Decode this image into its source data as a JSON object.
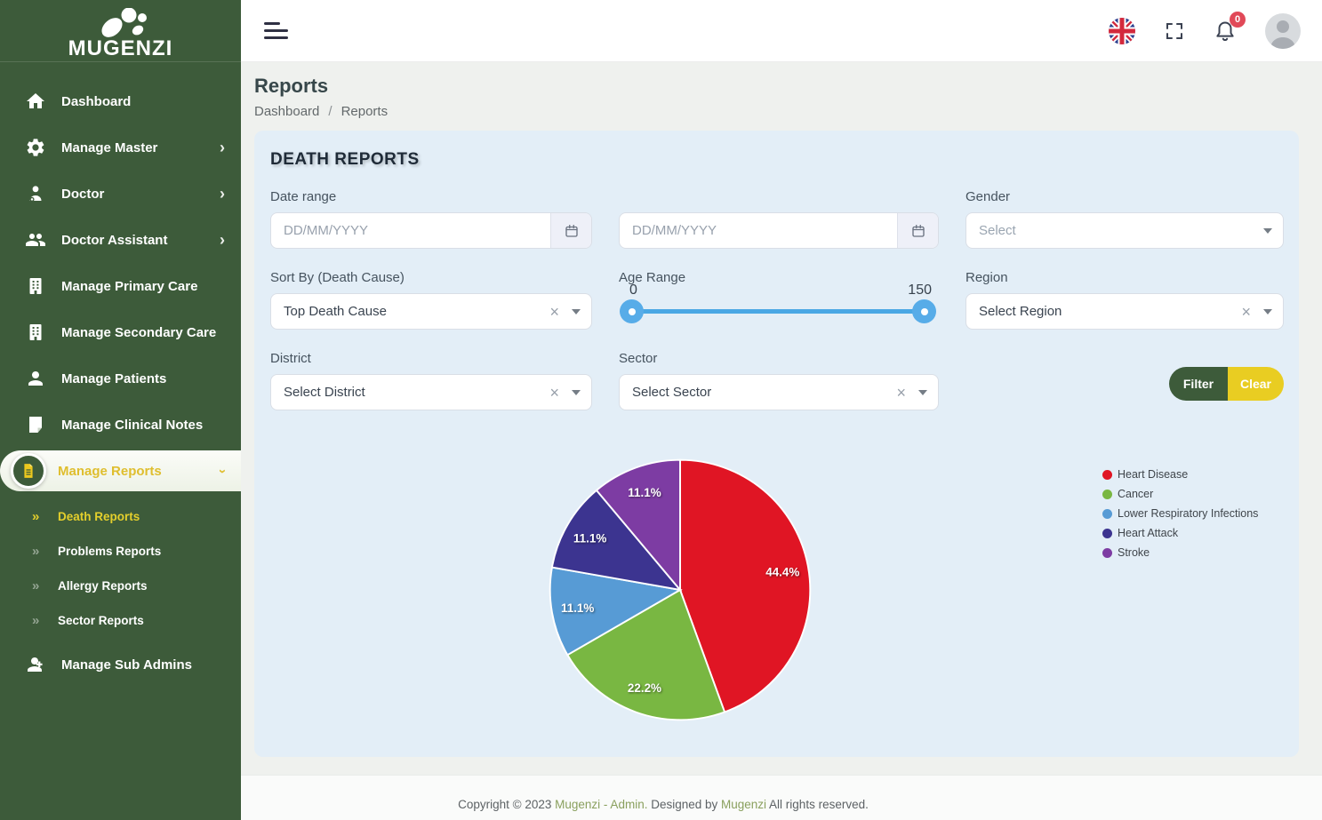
{
  "brand": {
    "name": "MUGENZI"
  },
  "topbar": {
    "notification_count": "0"
  },
  "page": {
    "title": "Reports",
    "breadcrumb": [
      "Dashboard",
      "Reports"
    ],
    "separator": "/"
  },
  "sidebar": {
    "items": [
      {
        "label": "Dashboard"
      },
      {
        "label": "Manage Master"
      },
      {
        "label": "Doctor"
      },
      {
        "label": "Doctor Assistant"
      },
      {
        "label": "Manage Primary Care"
      },
      {
        "label": "Manage Secondary Care"
      },
      {
        "label": "Manage Patients"
      },
      {
        "label": "Manage Clinical Notes"
      },
      {
        "label": "Manage Reports"
      },
      {
        "label": "Manage Sub Admins"
      }
    ],
    "report_submenu": [
      {
        "label": "Death Reports",
        "arrow": "»"
      },
      {
        "label": "Problems Reports",
        "arrow": "»"
      },
      {
        "label": "Allergy Reports",
        "arrow": "»"
      },
      {
        "label": "Sector Reports",
        "arrow": "»"
      }
    ],
    "chevron": "›"
  },
  "filters": {
    "heading": "DEATH REPORTS",
    "date_range": {
      "label": "Date range",
      "from_placeholder": "DD/MM/YYYY",
      "to_placeholder": "DD/MM/YYYY"
    },
    "gender": {
      "label": "Gender",
      "placeholder": "Select"
    },
    "sort_by": {
      "label": "Sort By (Death Cause)",
      "value": "Top Death Cause"
    },
    "age_range": {
      "label": "Age Range",
      "min": "0",
      "max": "150"
    },
    "region": {
      "label": "Region",
      "value": "Select Region"
    },
    "district": {
      "label": "District",
      "value": "Select District"
    },
    "sector": {
      "label": "Sector",
      "value": "Select Sector"
    },
    "clear_x": "×",
    "filter_button": "Filter",
    "clear_button": "Clear"
  },
  "chart_data": {
    "type": "pie",
    "labels": [
      "Heart Disease",
      "Cancer",
      "Lower Respiratory Infections",
      "Heart Attack",
      "Stroke"
    ],
    "values": [
      44.4,
      22.2,
      11.1,
      11.1,
      11.1
    ],
    "display_labels": [
      "44.4%",
      "22.2%",
      "11.1%",
      "11.1%",
      "11.1%"
    ],
    "colors": [
      "#e01524",
      "#79b742",
      "#579bd5",
      "#3c3490",
      "#7d3ca3"
    ],
    "start_angle_deg": 0,
    "direction": "clockwise",
    "legend_position": "right"
  },
  "footer": {
    "prefix": "Copyright © 2023 ",
    "link1": "Mugenzi - Admin.",
    "middle": " Designed by ",
    "link2": "Mugenzi",
    "suffix": " All rights reserved."
  }
}
